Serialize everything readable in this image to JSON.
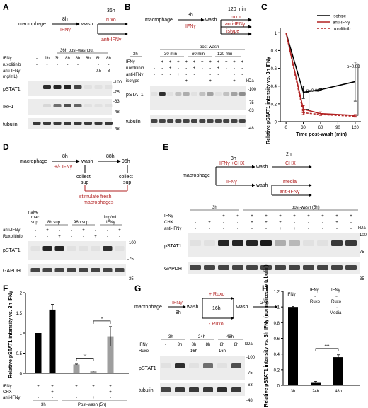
{
  "panel_letters": [
    "A",
    "B",
    "C",
    "D",
    "E",
    "F",
    "G",
    "H"
  ],
  "colors": {
    "red": "#b22222",
    "black": "#000000",
    "gray": "#9e9e9e",
    "blot_bg": "#ececec",
    "band": "#1a1a1a"
  },
  "A": {
    "scheme": {
      "start": "macrophage",
      "t1": "8h",
      "ifn": "IFNγ",
      "wash": "wash",
      "t2": "36h",
      "arm1": "ruxo",
      "arm2": "anti-IFNγ"
    },
    "header": "36h post-washout",
    "row_labels": [
      "IFNγ",
      "ruxolitinib",
      "anti-IFNγ",
      "(ng/mL)"
    ],
    "ifn_vals": [
      "-",
      "1h",
      "3h",
      "8h",
      "8h",
      "8h",
      "8h",
      "8h"
    ],
    "rux_vals": [
      "-",
      "-",
      "-",
      "-",
      "-",
      "+",
      "-",
      "-"
    ],
    "anti_vals": [
      "-",
      "-",
      "-",
      "-",
      "-",
      "-",
      "0.5",
      "8"
    ],
    "blots": [
      "pSTAT1",
      "IRF1",
      "tubulin"
    ],
    "markers": [
      "-100",
      "-75",
      "-63",
      "-48",
      "-48"
    ]
  },
  "B": {
    "scheme": {
      "start": "macrophage",
      "t1": "3h",
      "ifn": "IFNγ",
      "wash": "wash",
      "t2": "120 min",
      "arm1": "ruxo",
      "arm2": "anti-IFNγ",
      "arm3": "istype"
    },
    "header": "post-wash",
    "times": [
      "3h",
      "30 min",
      "60 min",
      "120 min"
    ],
    "row_labels": [
      "IFNγ",
      "ruxolitinib",
      "anti-IFNγ",
      "isotype"
    ],
    "ifn_vals": [
      "-",
      "+",
      "+",
      "+",
      "+",
      "+",
      "+",
      "+",
      "+",
      "+",
      "+",
      "+"
    ],
    "rux_vals": [
      "-",
      "-",
      "+",
      "-",
      "-",
      "+",
      "-",
      "-",
      "+",
      "-",
      "-",
      "-"
    ],
    "anti_vals": [
      "-",
      "-",
      "-",
      "+",
      "-",
      "-",
      "+",
      "-",
      "-",
      "+",
      "-",
      "-"
    ],
    "iso_vals": [
      "-",
      "-",
      "-",
      "-",
      "+",
      "-",
      "-",
      "+",
      "-",
      "-",
      "+",
      "-"
    ],
    "blots": [
      "pSTAT1",
      "tubulin"
    ],
    "kda": "kDa",
    "markers": [
      "-100",
      "-75",
      "-63",
      "-48"
    ]
  },
  "C": {
    "ylabel_lines": [
      "Relative pSTAT1 intensity vs. 3h IFNγ"
    ],
    "xlabel": "Time post-wash (min)",
    "p1": "p=0.02",
    "p2": "p=0.08"
  },
  "chart_data": [
    {
      "type": "line",
      "panel": "C",
      "xlabel": "Time post-wash (min)",
      "ylabel": "Relative pSTAT1 intensity vs. 3h IFNγ",
      "x": [
        0,
        30,
        60,
        120
      ],
      "xlim": [
        -10,
        130
      ],
      "ylim": [
        0,
        1.05
      ],
      "xticks": [
        "0",
        "30",
        "60",
        "90",
        "120"
      ],
      "yticks": [
        "0",
        "0.2",
        "0.4",
        "0.6",
        "0.8",
        "1"
      ],
      "legend": "top-right",
      "series": [
        {
          "name": "isotype",
          "values": [
            1.0,
            0.33,
            0.36,
            0.45
          ],
          "err": [
            0,
            0.07,
            0.01,
            0.22
          ],
          "color": "#000000",
          "dash": false
        },
        {
          "name": "anti-IFNγ",
          "values": [
            1.0,
            0.14,
            0.09,
            0.07
          ],
          "err": [
            0,
            0.04,
            0.02,
            0.01
          ],
          "color": "#b22222",
          "dash": false
        },
        {
          "name": "ruxolitinib",
          "values": [
            1.0,
            0.1,
            0.08,
            0.06
          ],
          "err": [
            0,
            0.02,
            0.01,
            0.01
          ],
          "color": "#b22222",
          "dash": true
        }
      ]
    },
    {
      "type": "bar",
      "panel": "F",
      "ylabel": "Relative pSTAT1 intensity vs. 3h IFNγ",
      "ylim": [
        0,
        2
      ],
      "yticks": [
        "0",
        "0.5",
        "1",
        "1.5",
        "2"
      ],
      "values": [
        1.0,
        1.58,
        0.22,
        0.05,
        0.92
      ],
      "err": [
        0,
        0.13,
        0.01,
        0.01,
        0.24
      ],
      "colors": [
        "#000000",
        "#000000",
        "#9e9e9e",
        "#9e9e9e",
        "#9e9e9e"
      ],
      "annotations": [
        {
          "between": [
            2,
            3
          ],
          "label": "**"
        },
        {
          "between": [
            3,
            4
          ],
          "label": "*"
        }
      ]
    },
    {
      "type": "bar",
      "panel": "H",
      "ylabel": "Relative pSTAT1 intensity vs. 3h IFNγ (normalized to tubulin)",
      "ylim": [
        0,
        1.2
      ],
      "yticks": [
        "0",
        "0.2",
        "0.4",
        "0.6",
        "0.8",
        "1",
        "1.2"
      ],
      "categories": [
        "3h",
        "24h",
        "48h"
      ],
      "values": [
        1.0,
        0.04,
        0.36
      ],
      "err": [
        0.005,
        0.01,
        0.03
      ],
      "annotations": [
        {
          "between": [
            1,
            2
          ],
          "label": "***"
        }
      ]
    }
  ],
  "D": {
    "scheme": {
      "start": "macrophage",
      "t1": "8h",
      "ifn": "+/- IFNγ",
      "wash": "wash",
      "t2": "88h",
      "t3": "96h",
      "collect1": "collect",
      "sup1": "sup",
      "collect2": "collect",
      "sup2": "sup",
      "stim1": "stimulate fresh",
      "stim2": "macrophages"
    },
    "col_labels": [
      "naive",
      "mac",
      "sup",
      "8h sup",
      "96h sup",
      "1ng/mL",
      "IFNγ"
    ],
    "row_labels": [
      "anti-IFNγ",
      "Ruxolitinib"
    ],
    "anti_vals": [
      "-",
      "+",
      "-",
      "-",
      "+",
      "-",
      "-",
      "+"
    ],
    "rux_vals": [
      "-",
      "-",
      "+",
      "-",
      "-",
      "+",
      "-",
      "-"
    ],
    "blots": [
      "pSTAT1",
      "GAPDH"
    ],
    "markers": [
      "-100",
      "-75",
      "-35"
    ]
  },
  "E": {
    "scheme": {
      "start": "macrophage",
      "t1": "3h",
      "arm1": "IFNγ +CHX",
      "arm2": "IFNγ",
      "wash": "wash",
      "wash2": "wash",
      "t2": "2h",
      "o1": "CHX",
      "o2": "media",
      "o3": "anti-IFNγ"
    },
    "headers": [
      "3h",
      "post-wash (5h)"
    ],
    "row_labels": [
      "IFNγ",
      "CHX",
      "anti-IFNγ"
    ],
    "ifn_vals": [
      "-",
      "-",
      "+",
      "+",
      "+",
      "+",
      "+",
      "+",
      "+",
      "+",
      "+",
      "+"
    ],
    "chx_vals": [
      "-",
      "+",
      "-",
      "-",
      "+",
      "+",
      "+",
      "-",
      "-",
      "-",
      "+",
      "-"
    ],
    "anti_vals": [
      "-",
      "-",
      "-",
      "-",
      "-",
      "-",
      "+",
      "+",
      "-",
      "-",
      "-",
      "-"
    ],
    "blots": [
      "pSTAT1",
      "GAPDH"
    ],
    "kda": "kDa",
    "markers": [
      "-100",
      "-75",
      "-35"
    ]
  },
  "F": {
    "row_labels": [
      "IFNγ",
      "CHX",
      "anti-IFNγ"
    ],
    "ifn_vals": [
      "+",
      "+",
      "+",
      "+",
      "+"
    ],
    "chx_vals": [
      "-",
      "+",
      "-",
      "-",
      "+"
    ],
    "anti_vals": [
      "-",
      "-",
      "-",
      "+",
      "-"
    ],
    "groups": [
      "3h",
      "Post-wash (5h)"
    ],
    "sig1": "**",
    "sig2": "*"
  },
  "G": {
    "scheme": {
      "start": "macrophage",
      "ifn": "IFNγ",
      "t1": "8h",
      "wash": "wash",
      "arm1": "+ Ruxo",
      "arm2": "- Ruxo",
      "t2": "16h",
      "wash2": "wash",
      "t3": "24h"
    },
    "times": [
      "3h",
      "24h",
      "48h"
    ],
    "row_labels": [
      "IFNγ",
      "Ruxo"
    ],
    "ifn_vals": [
      "-",
      "3h",
      "8h",
      "8h",
      "8h",
      "8h"
    ],
    "rux_vals": [
      "-",
      "-",
      "16h",
      "-",
      "16h",
      "-"
    ],
    "blots": [
      "pSTAT1",
      "tubulin"
    ],
    "kda": "kDa",
    "markers": [
      "-100",
      "-75",
      "-63",
      "-48"
    ]
  },
  "H": {
    "head1": "IFNγ",
    "head2": [
      "IFNγ",
      "→",
      "Ruxo"
    ],
    "head3": [
      "IFNγ",
      "→",
      "Ruxo",
      "→",
      "Media"
    ],
    "sig": "***"
  }
}
